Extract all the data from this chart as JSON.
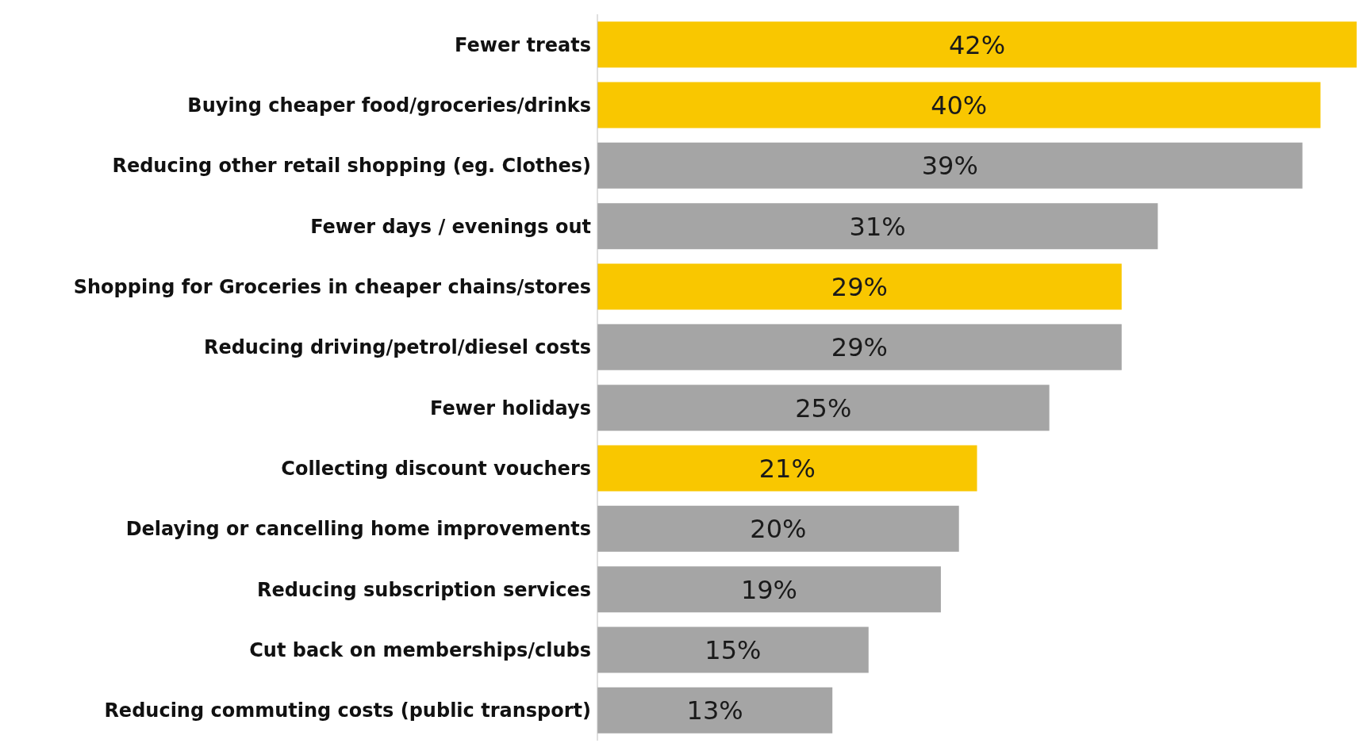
{
  "chart_data": {
    "type": "bar",
    "orientation": "horizontal",
    "categories": [
      "Fewer treats",
      "Buying cheaper food/groceries/drinks",
      "Reducing other retail shopping (eg. Clothes)",
      "Fewer days / evenings out",
      "Shopping for Groceries in cheaper chains/stores",
      "Reducing driving/petrol/diesel costs",
      "Fewer holidays",
      "Collecting discount vouchers",
      "Delaying or cancelling home improvements",
      "Reducing subscription services",
      "Cut back on memberships/clubs",
      "Reducing commuting costs (public transport)"
    ],
    "values": [
      42,
      40,
      39,
      31,
      29,
      29,
      25,
      21,
      20,
      19,
      15,
      13
    ],
    "colors": [
      "#f9c700",
      "#f9c700",
      "#a5a5a5",
      "#a5a5a5",
      "#f9c700",
      "#a5a5a5",
      "#a5a5a5",
      "#f9c700",
      "#a5a5a5",
      "#a5a5a5",
      "#a5a5a5",
      "#a5a5a5"
    ],
    "value_labels": [
      "42%",
      "40%",
      "39%",
      "31%",
      "29%",
      "29%",
      "25%",
      "21%",
      "20%",
      "19%",
      "15%",
      "13%"
    ],
    "grid": false,
    "legend": false
  }
}
